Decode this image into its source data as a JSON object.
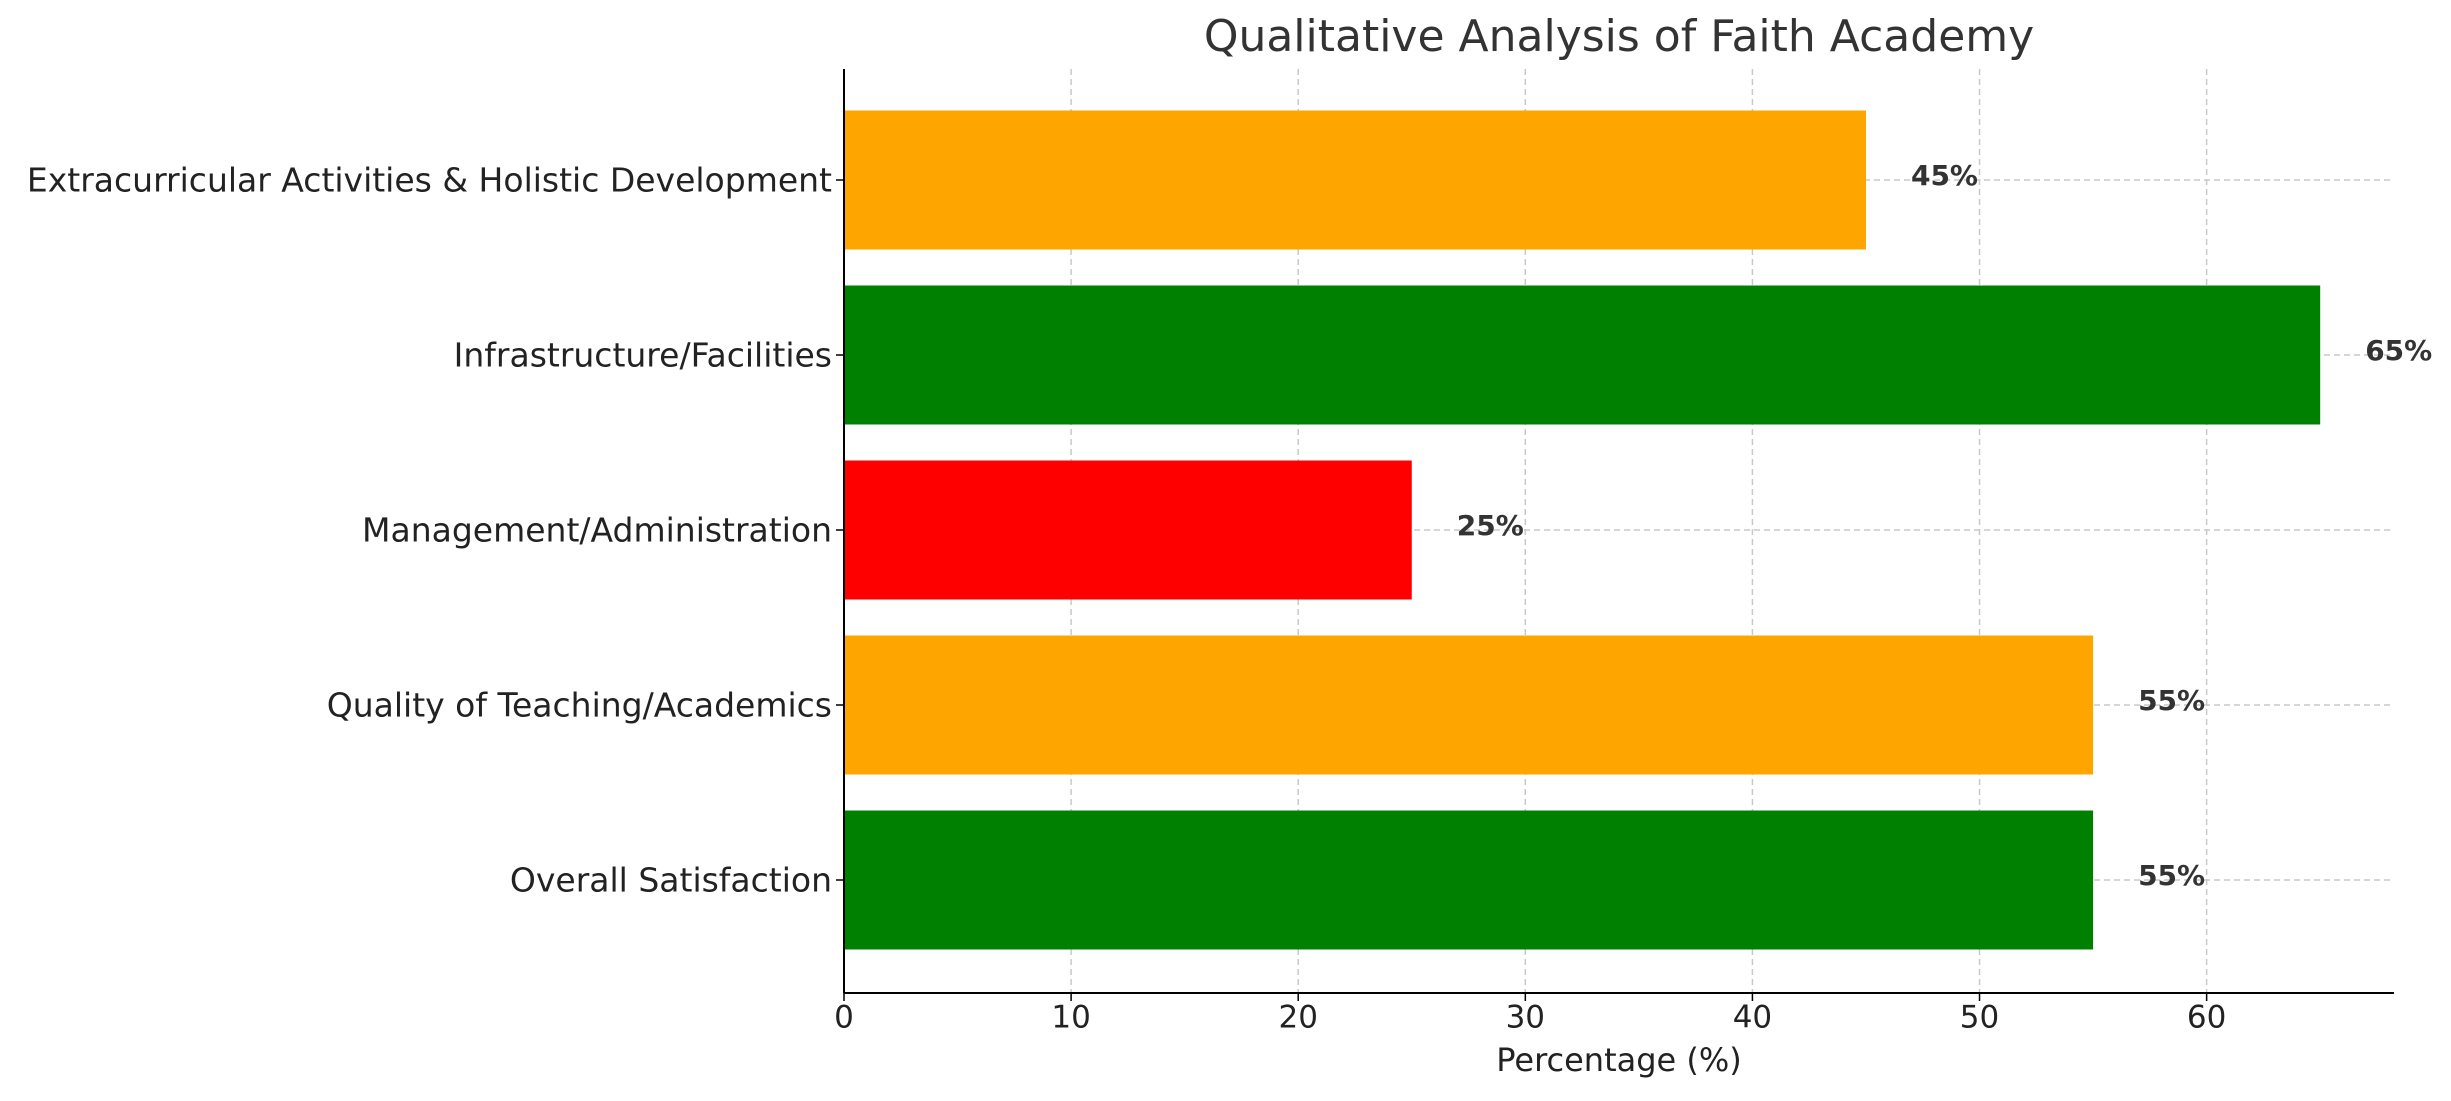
{
  "chart_data": {
    "type": "barh",
    "title": "Qualitative Analysis of Faith Academy",
    "xlabel": "Percentage (%)",
    "categories": [
      "Overall Satisfaction",
      "Quality of Teaching/Academics",
      "Management/Administration",
      "Infrastructure/Facilities",
      "Extracurricular Activities & Holistic Development"
    ],
    "values": [
      55,
      55,
      25,
      65,
      45
    ],
    "value_labels": [
      "55%",
      "55%",
      "25%",
      "65%",
      "45%"
    ],
    "colors": [
      "#008000",
      "#ffa500",
      "#ff0000",
      "#008000",
      "#ffa500"
    ],
    "xlim": [
      0,
      68.25
    ],
    "xticks": [
      0,
      10,
      20,
      30,
      40,
      50,
      60
    ],
    "grid": true
  }
}
